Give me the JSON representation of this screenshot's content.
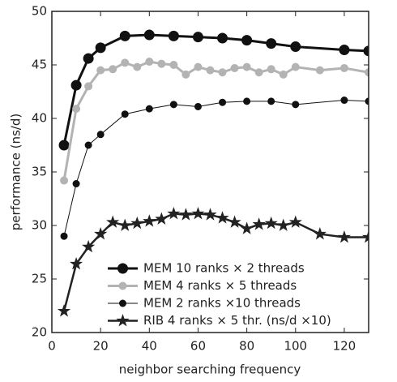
{
  "chart_data": {
    "type": "line",
    "xlabel": "neighbor searching frequency",
    "ylabel": "performance (ns/d)",
    "xlim": [
      0,
      130
    ],
    "xticks": [
      0,
      20,
      40,
      60,
      80,
      100,
      120
    ],
    "ylim": [
      20,
      50
    ],
    "yticks": [
      20,
      25,
      30,
      35,
      40,
      45,
      50
    ],
    "legend": "lower right",
    "series": [
      {
        "name": "MEM 10 ranks × 2 threads",
        "color": "#111111",
        "marker": "circle",
        "x": [
          5,
          10,
          15,
          20,
          30,
          40,
          50,
          60,
          70,
          80,
          90,
          100,
          120,
          130
        ],
        "values": [
          37.5,
          43.1,
          45.6,
          46.6,
          47.7,
          47.8,
          47.7,
          47.6,
          47.5,
          47.3,
          47.0,
          46.7,
          46.4,
          46.3
        ]
      },
      {
        "name": "MEM 4 ranks × 5 threads",
        "color": "#b3b3b3",
        "marker": "circle",
        "x": [
          5,
          10,
          15,
          20,
          25,
          30,
          35,
          40,
          45,
          50,
          55,
          60,
          65,
          70,
          75,
          80,
          85,
          90,
          95,
          100,
          110,
          120,
          130
        ],
        "values": [
          34.2,
          40.9,
          43.0,
          44.5,
          44.6,
          45.2,
          44.8,
          45.3,
          45.1,
          45.0,
          44.1,
          44.8,
          44.5,
          44.3,
          44.7,
          44.8,
          44.3,
          44.6,
          44.1,
          44.8,
          44.5,
          44.7,
          44.3
        ]
      },
      {
        "name": "MEM 2 ranks ×10 threads",
        "color": "#111111",
        "marker": "circle",
        "x": [
          5,
          10,
          15,
          20,
          30,
          40,
          50,
          60,
          70,
          80,
          90,
          100,
          120,
          130
        ],
        "values": [
          29.0,
          33.9,
          37.5,
          38.5,
          40.4,
          40.9,
          41.3,
          41.1,
          41.5,
          41.6,
          41.6,
          41.3,
          41.7,
          41.6
        ]
      },
      {
        "name": "RIB 4 ranks × 5 thr. (ns/d ×10)",
        "color": "#222222",
        "marker": "star",
        "x": [
          5,
          10,
          15,
          20,
          25,
          30,
          35,
          40,
          45,
          50,
          55,
          60,
          65,
          70,
          75,
          80,
          85,
          90,
          95,
          100,
          110,
          120,
          130
        ],
        "values": [
          22.0,
          26.4,
          28.0,
          29.2,
          30.3,
          30.0,
          30.2,
          30.4,
          30.6,
          31.1,
          31.0,
          31.1,
          31.0,
          30.7,
          30.3,
          29.7,
          30.1,
          30.2,
          30.0,
          30.3,
          29.2,
          28.9,
          28.9
        ]
      }
    ]
  }
}
